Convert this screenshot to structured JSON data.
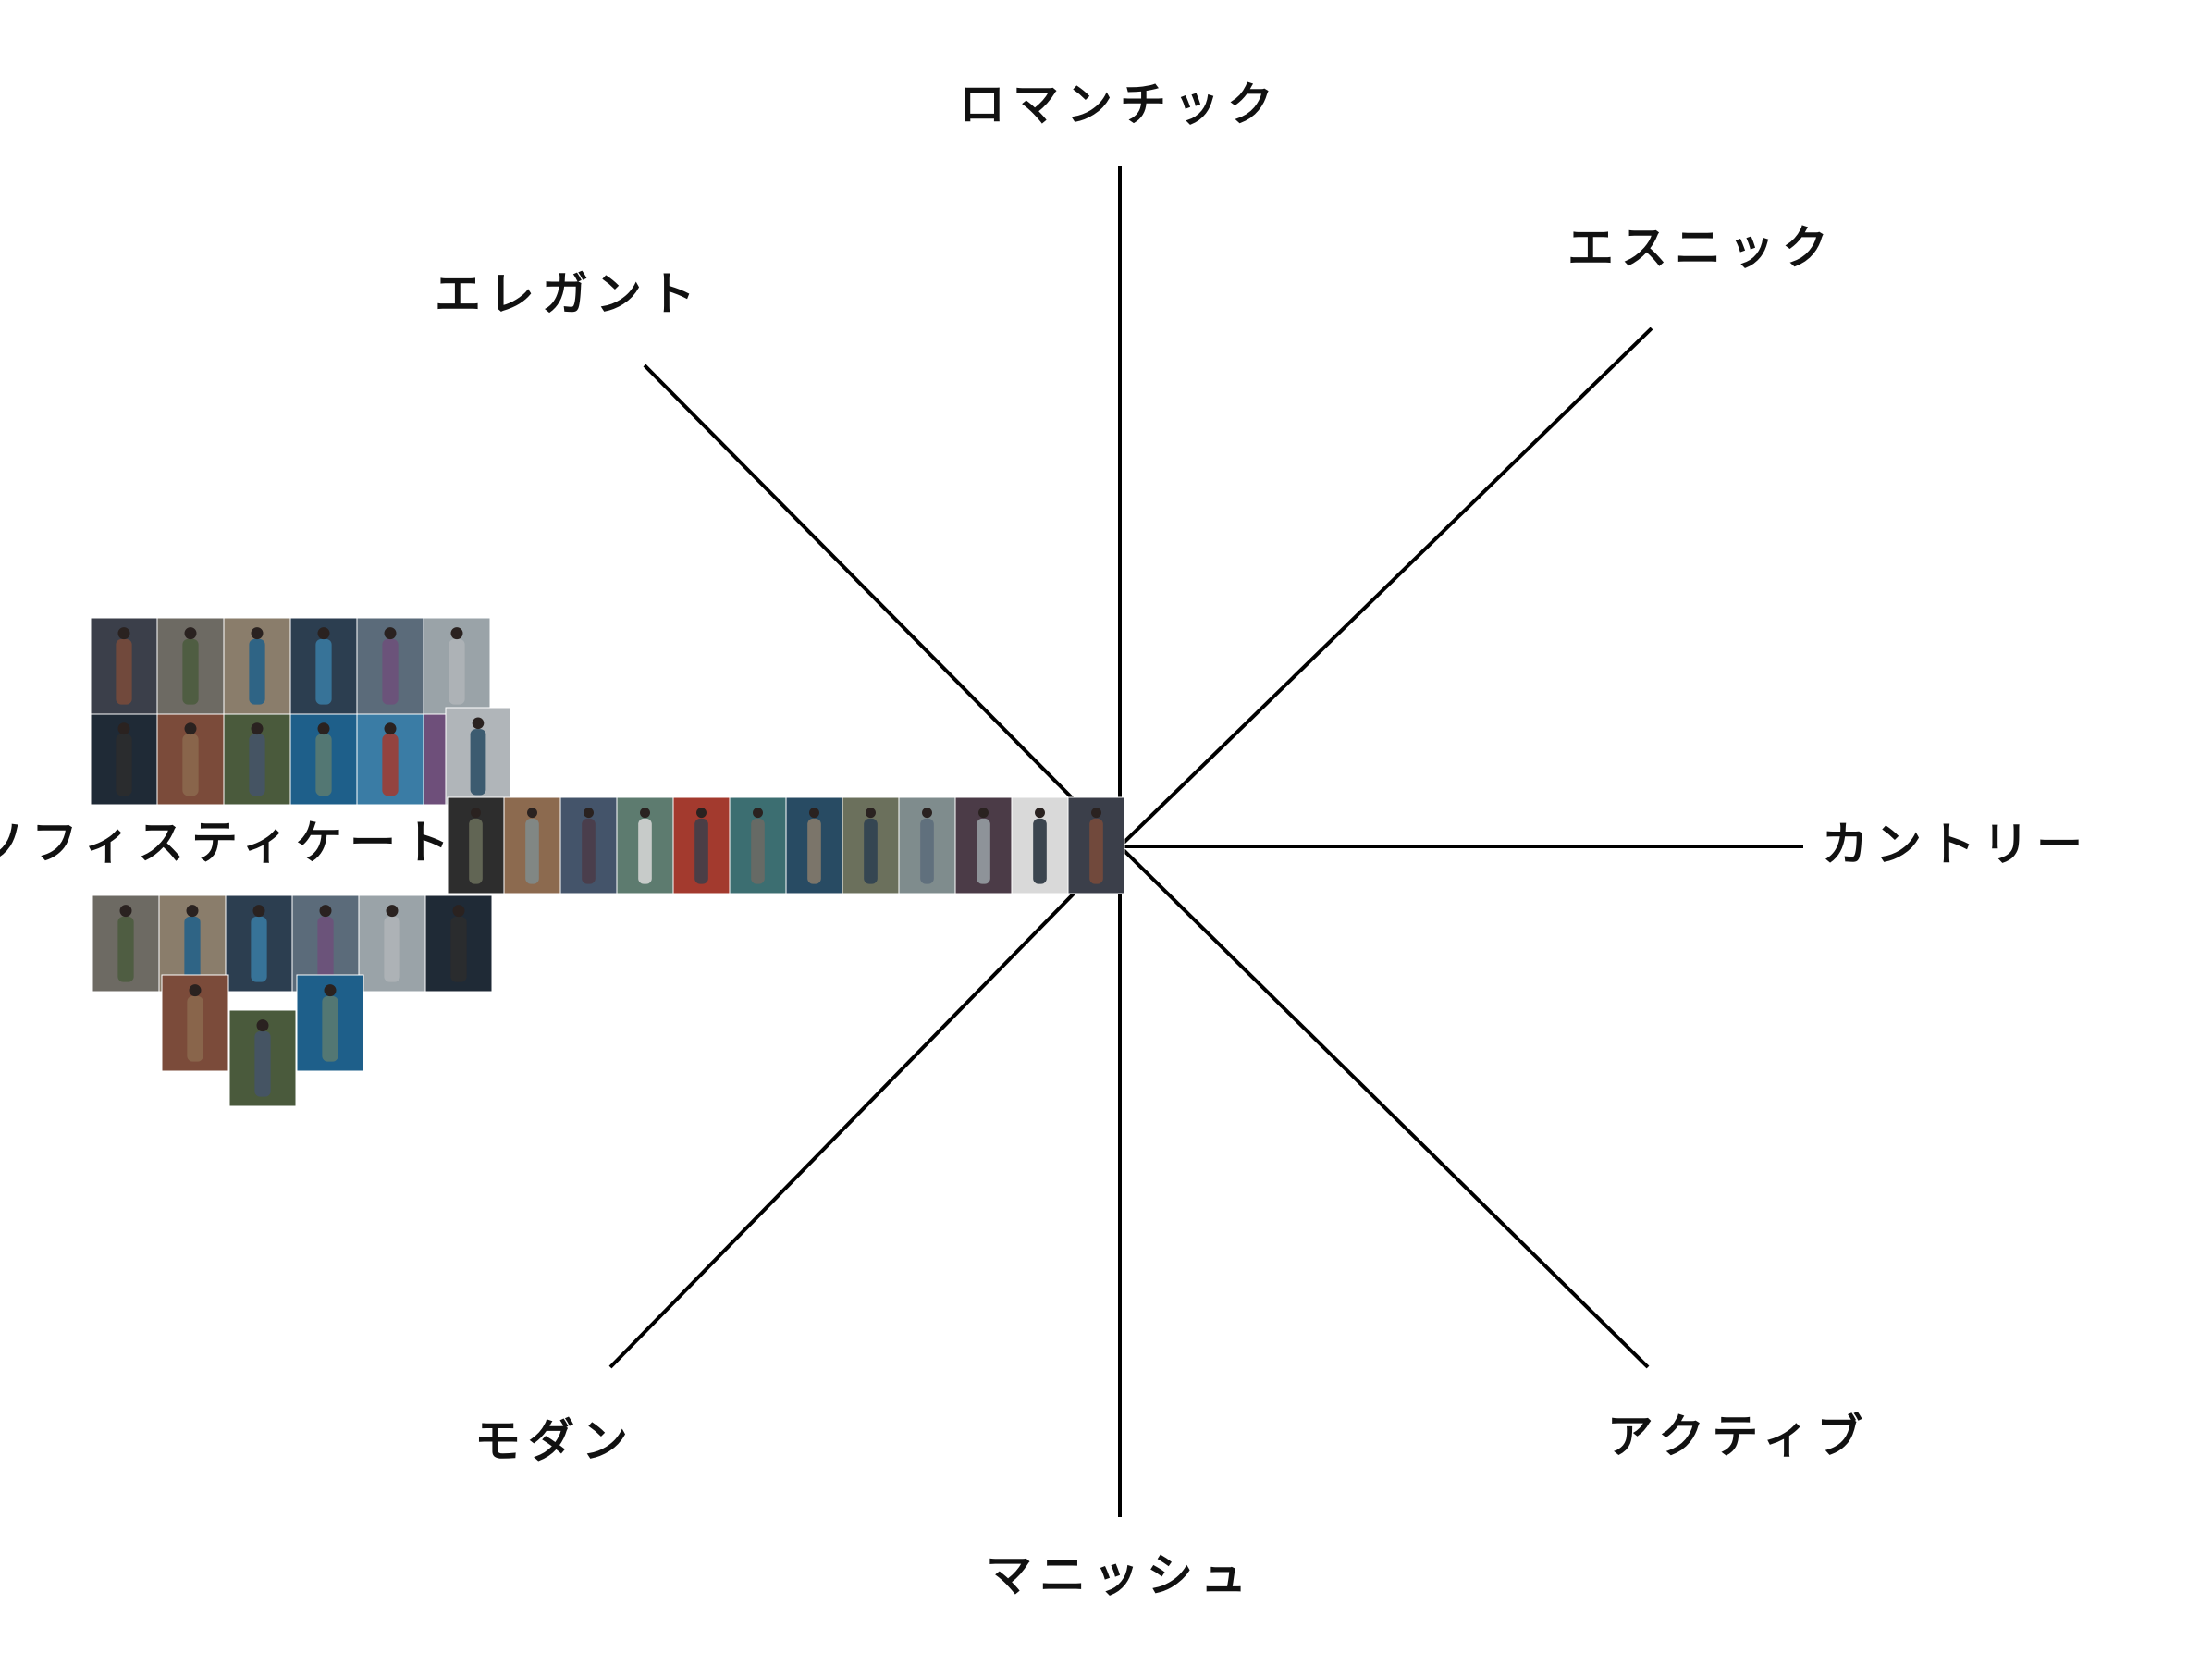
{
  "axes": [
    {
      "id": "romantic",
      "label": "ロマンチック"
    },
    {
      "id": "ethnic",
      "label": "エスニック"
    },
    {
      "id": "country",
      "label": "カントリー"
    },
    {
      "id": "active",
      "label": "アクティブ"
    },
    {
      "id": "mannish",
      "label": "マニッシュ"
    },
    {
      "id": "modern",
      "label": "モダン"
    },
    {
      "id": "sophisticated",
      "label": "ソフィスティケート"
    },
    {
      "id": "elegant",
      "label": "エレガント"
    }
  ],
  "colors": {
    "line": "#000000",
    "text": "#111111",
    "background": "#ffffff"
  },
  "photo_cluster": {
    "position_axis": "sophisticated",
    "description_visible": false
  }
}
